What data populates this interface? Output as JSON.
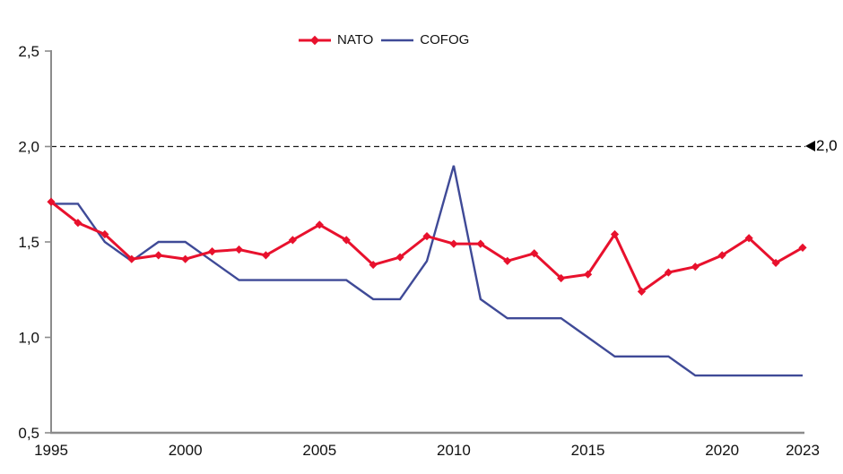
{
  "chart_data": {
    "type": "line",
    "title": "",
    "x": [
      1995,
      1996,
      1997,
      1998,
      1999,
      2000,
      2001,
      2002,
      2003,
      2004,
      2005,
      2006,
      2007,
      2008,
      2009,
      2010,
      2011,
      2012,
      2013,
      2014,
      2015,
      2016,
      2017,
      2018,
      2019,
      2020,
      2021,
      2022,
      2023
    ],
    "series": [
      {
        "name": "NATO",
        "color": "#e8112d",
        "marker": "diamond",
        "values": [
          1.71,
          1.6,
          1.54,
          1.41,
          1.43,
          1.41,
          1.45,
          1.46,
          1.43,
          1.51,
          1.59,
          1.51,
          1.38,
          1.42,
          1.53,
          1.49,
          1.49,
          1.4,
          1.44,
          1.31,
          1.33,
          1.54,
          1.24,
          1.34,
          1.37,
          1.43,
          1.52,
          1.39,
          1.47
        ]
      },
      {
        "name": "COFOG",
        "color": "#3f4a97",
        "marker": "none",
        "values": [
          1.7,
          1.7,
          1.5,
          1.4,
          1.5,
          1.5,
          1.4,
          1.3,
          1.3,
          1.3,
          1.3,
          1.3,
          1.2,
          1.2,
          1.4,
          1.9,
          1.2,
          1.1,
          1.1,
          1.1,
          1.0,
          0.9,
          0.9,
          0.9,
          0.8,
          0.8,
          0.8,
          0.8,
          0.8
        ]
      }
    ],
    "xlim": [
      1995,
      2023
    ],
    "ylim": [
      0.5,
      2.5
    ],
    "x_ticks": [
      {
        "value": 1995,
        "label": "1995"
      },
      {
        "value": 2000,
        "label": "2000"
      },
      {
        "value": 2005,
        "label": "2005"
      },
      {
        "value": 2010,
        "label": "2010"
      },
      {
        "value": 2015,
        "label": "2015"
      },
      {
        "value": 2020,
        "label": "2020"
      },
      {
        "value": 2023,
        "label": "2023"
      }
    ],
    "y_ticks": [
      {
        "value": 2.5,
        "label": "2,5"
      },
      {
        "value": 2.0,
        "label": "2,0"
      },
      {
        "value": 1.5,
        "label": "1,5"
      },
      {
        "value": 1.0,
        "label": "1,0"
      },
      {
        "value": 0.5,
        "label": "0,5"
      }
    ],
    "reference_line": {
      "value": 2.0,
      "label": "2,0",
      "style": "dashed",
      "color": "#1a1a1a"
    },
    "legend_position": "top-center",
    "grid": false
  },
  "colors": {
    "axis": "#8c8c8c",
    "text": "#111111"
  }
}
